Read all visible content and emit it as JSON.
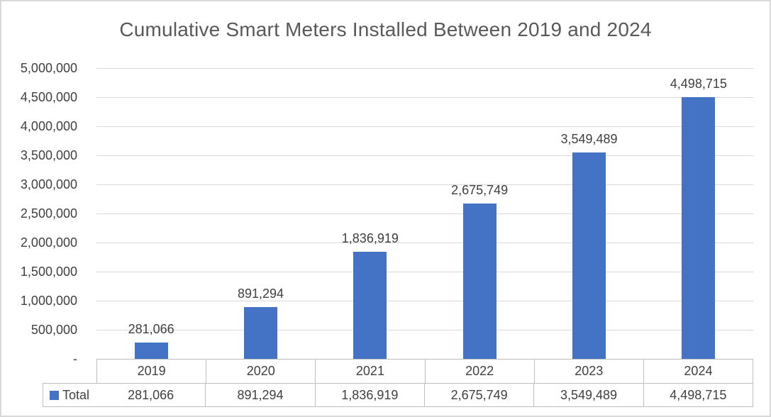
{
  "chart_data": {
    "type": "bar",
    "title": "Cumulative Smart Meters Installed Between 2019 and 2024",
    "categories": [
      "2019",
      "2020",
      "2021",
      "2022",
      "2023",
      "2024"
    ],
    "series": [
      {
        "name": "Total",
        "values": [
          281066,
          891294,
          1836919,
          2675749,
          3549489,
          4498715
        ],
        "value_labels": [
          "281,066",
          "891,294",
          "1,836,919",
          "2,675,749",
          "3,549,489",
          "4,498,715"
        ]
      }
    ],
    "xlabel": "",
    "ylabel": "",
    "ylim": [
      0,
      5000000
    ],
    "grid": true,
    "legend_position": "data-table-bottom-left",
    "y_ticks": [
      {
        "value": 0,
        "label": "-"
      },
      {
        "value": 500000,
        "label": "500,000"
      },
      {
        "value": 1000000,
        "label": "1,000,000"
      },
      {
        "value": 1500000,
        "label": "1,500,000"
      },
      {
        "value": 2000000,
        "label": "2,000,000"
      },
      {
        "value": 2500000,
        "label": "2,500,000"
      },
      {
        "value": 3000000,
        "label": "3,000,000"
      },
      {
        "value": 3500000,
        "label": "3,500,000"
      },
      {
        "value": 4000000,
        "label": "4,000,000"
      },
      {
        "value": 4500000,
        "label": "4,500,000"
      },
      {
        "value": 5000000,
        "label": "5,000,000"
      }
    ],
    "colors": {
      "bar": "#4472C4",
      "gridline": "#D9D9D9",
      "table_border": "#BFBFBF",
      "label_text": "#404040",
      "title_text": "#595959",
      "frame_border": "#D9D9D9",
      "background": "#FFFFFF"
    }
  }
}
